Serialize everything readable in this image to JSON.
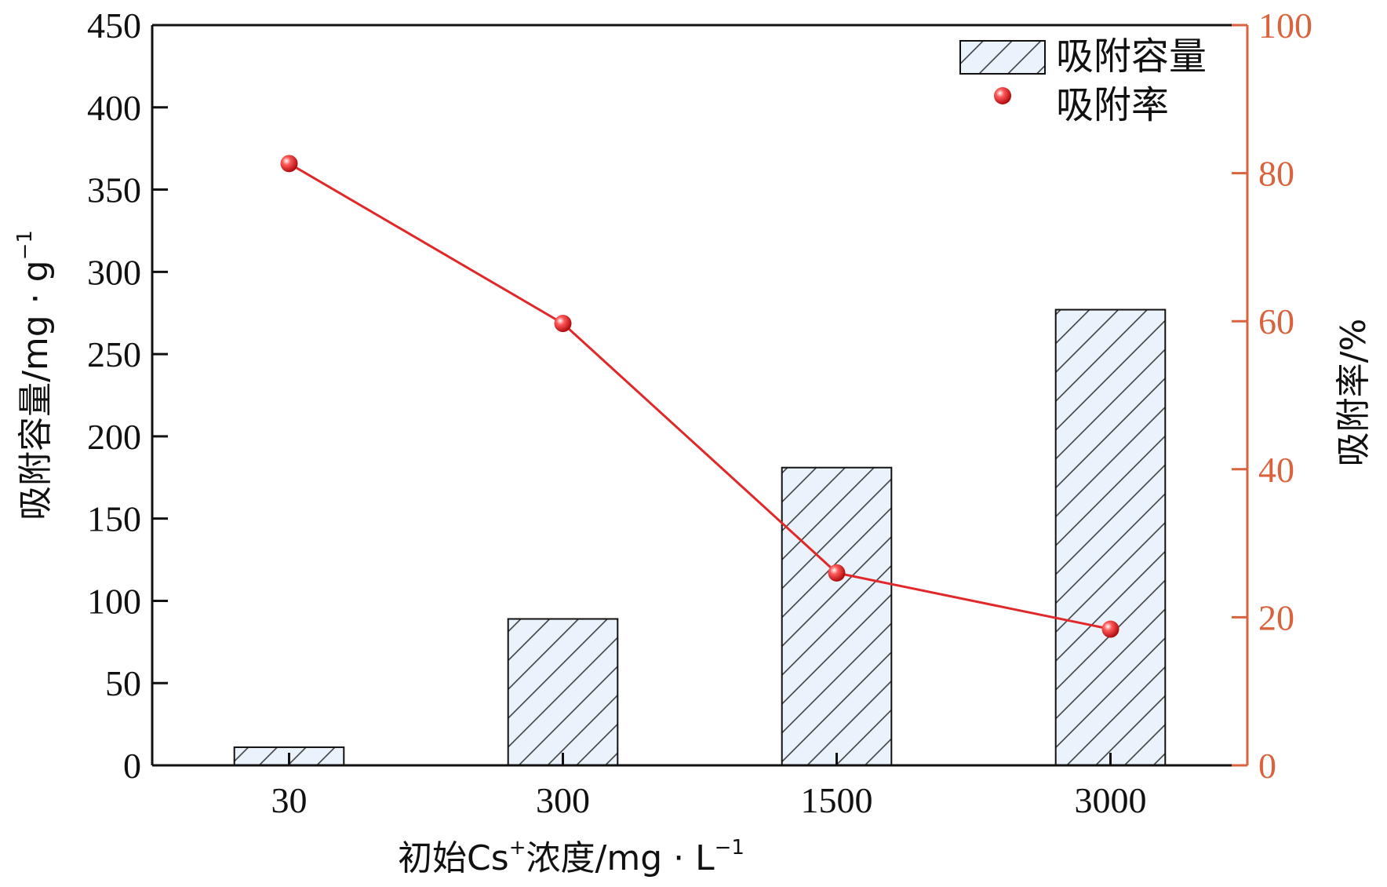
{
  "chart_data": {
    "type": "bar+line",
    "categories": [
      "30",
      "300",
      "1500",
      "3000"
    ],
    "series": [
      {
        "name": "吸附容量",
        "type": "bar",
        "axis": "left",
        "values": [
          11,
          89,
          181,
          277
        ]
      },
      {
        "name": "吸附率",
        "type": "line",
        "axis": "right",
        "values": [
          81.3,
          59.7,
          26.0,
          18.4
        ]
      }
    ],
    "xlabel_main": "初始Cs",
    "xlabel_sup": "+",
    "xlabel_tail": "浓度/mg · L",
    "xlabel_unit_sup": "−1",
    "ylabel_left_main": "吸附容量/mg · g",
    "ylabel_left_sup": "−1",
    "ylabel_right": "吸附率/%",
    "ylim_left": [
      0,
      450
    ],
    "yticks_left": [
      "0",
      "50",
      "100",
      "150",
      "200",
      "250",
      "300",
      "350",
      "400",
      "450"
    ],
    "ylim_right": [
      0,
      100
    ],
    "yticks_right": [
      "0",
      "20",
      "40",
      "60",
      "80",
      "100"
    ],
    "legend_position": "top-right",
    "grid": false,
    "colors": {
      "bar_fill": "#eaf3fb",
      "bar_edge": "#111111",
      "line": "#e0282a",
      "right_axis": "#d9633d"
    }
  }
}
